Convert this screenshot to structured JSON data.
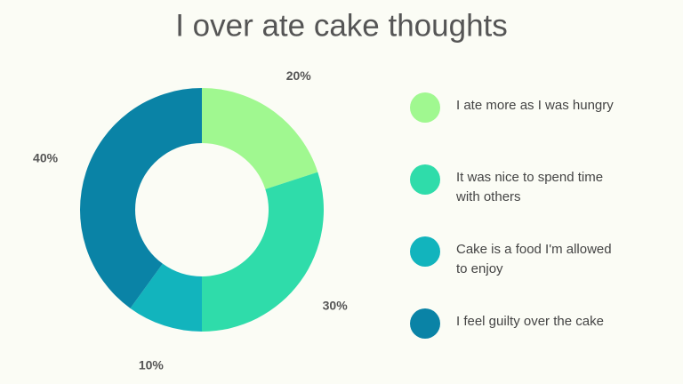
{
  "chart_data": {
    "type": "donut",
    "title": "I over ate cake thoughts",
    "categories": [
      "I ate more as I was hungry",
      "It was nice to spend time with others",
      "Cake is a food I'm allowed to enjoy",
      "I feel guilty over the cake"
    ],
    "values": [
      20,
      30,
      10,
      40
    ],
    "value_labels": [
      "20%",
      "30%",
      "10%",
      "40%"
    ],
    "colors": [
      "#a0f890",
      "#2fdcaa",
      "#12b4bd",
      "#0a83a6"
    ]
  }
}
